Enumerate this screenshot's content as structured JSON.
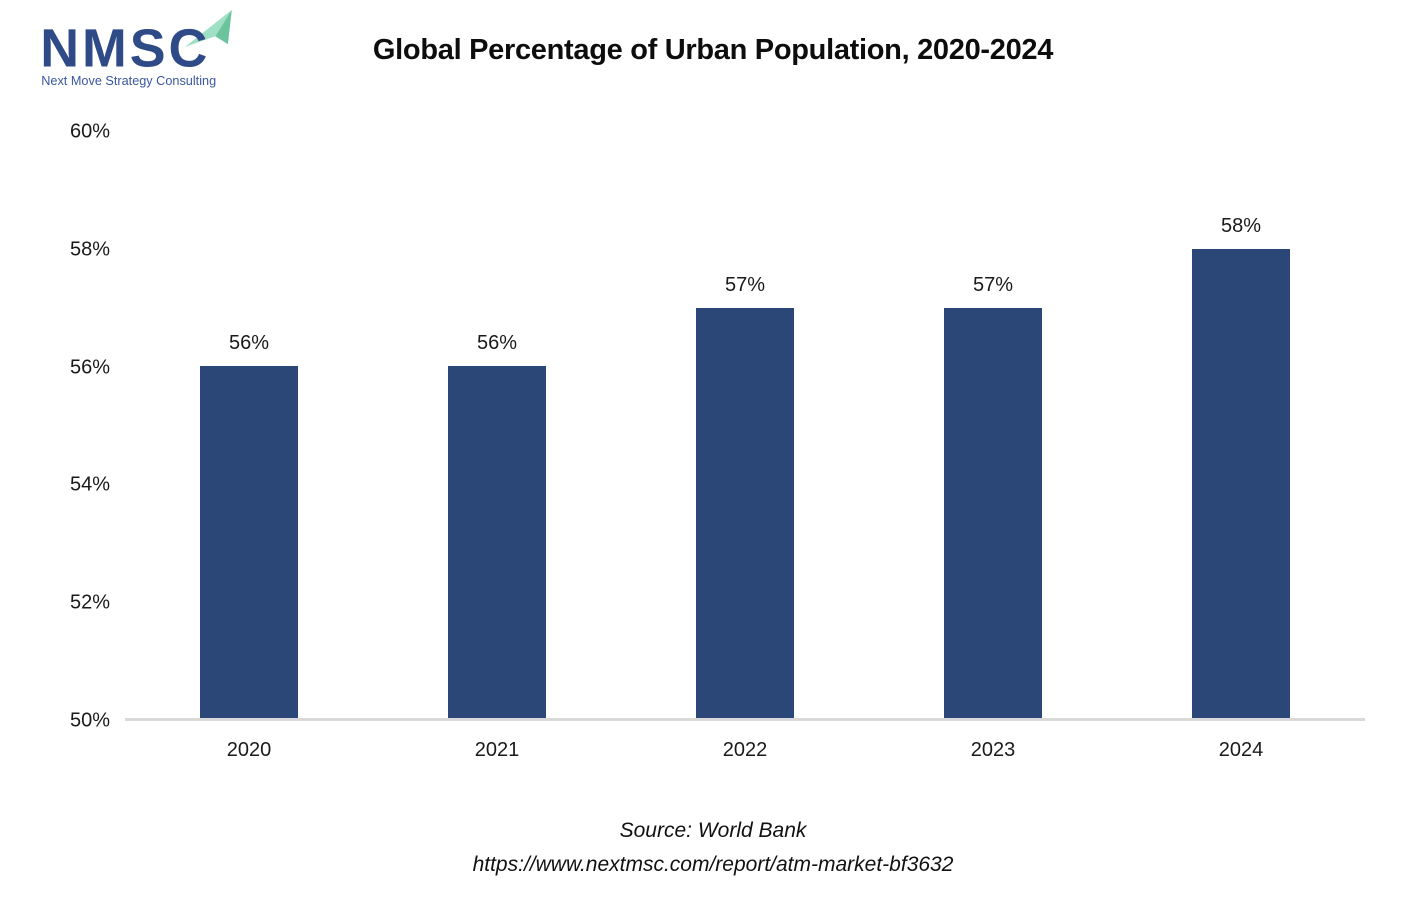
{
  "logo": {
    "acronym": "NMSC",
    "tagline": "Next Move Strategy Consulting"
  },
  "header": {
    "title": "Global Percentage of Urban Population, 2020-2024"
  },
  "chart_data": {
    "type": "bar",
    "title": "Global Percentage of Urban Population, 2020-2024",
    "categories": [
      "2020",
      "2021",
      "2022",
      "2023",
      "2024"
    ],
    "values": [
      56,
      56,
      57,
      57,
      58
    ],
    "value_labels": [
      "56%",
      "56%",
      "57%",
      "57%",
      "58%"
    ],
    "xlabel": "",
    "ylabel": "",
    "ylim": [
      50,
      60
    ],
    "yticks": [
      {
        "value": 50,
        "label": "50%"
      },
      {
        "value": 52,
        "label": "52%"
      },
      {
        "value": 54,
        "label": "54%"
      },
      {
        "value": 56,
        "label": "56%"
      },
      {
        "value": 58,
        "label": "58%"
      },
      {
        "value": 60,
        "label": "60%"
      }
    ],
    "grid": false,
    "legend": null
  },
  "source": {
    "line1": "Source: World Bank",
    "line2": "https://www.nextmsc.com/report/atm-market-bf3632"
  },
  "colors": {
    "bar": "#2b4778",
    "baseline": "#d9d9d9",
    "logo_navy": "#2e4a87",
    "logo_tagline": "#3a57a0",
    "logo_arrow_light": "#9fdfc4",
    "logo_arrow_dark": "#6bc49e"
  }
}
